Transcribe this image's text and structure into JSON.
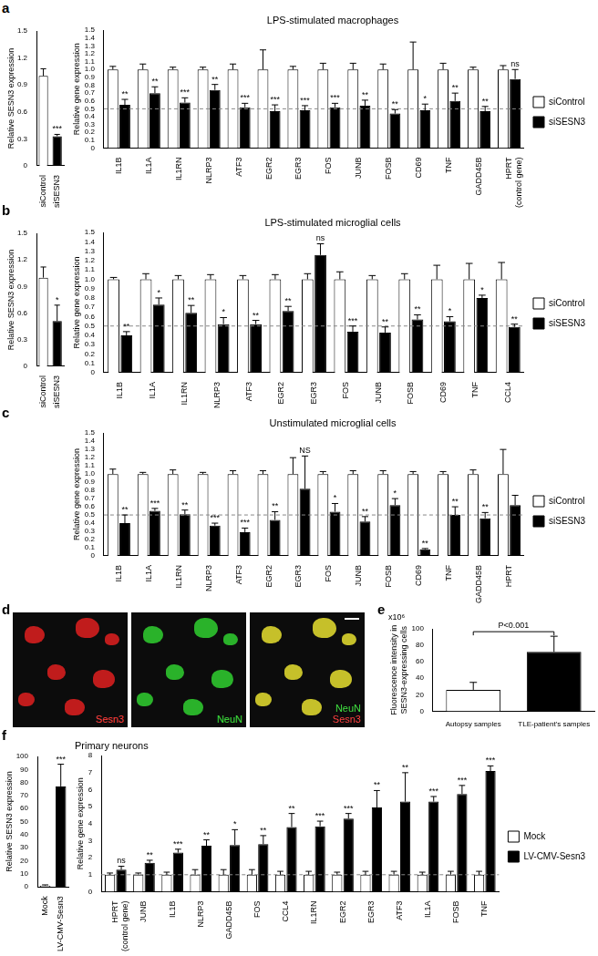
{
  "chart_data": [
    {
      "panel": "a",
      "type": "bar",
      "y_label": "Relative SESN3 expression",
      "categories": [
        "siControl",
        "siSESN3"
      ],
      "values": [
        1.0,
        0.33
      ],
      "errors": [
        0.08,
        0.02
      ],
      "significance": [
        null,
        "***"
      ],
      "colors": [
        "#ffffff",
        "#000000"
      ],
      "ylim": [
        0,
        1.5
      ],
      "yticks": [
        0,
        0.3,
        0.6,
        0.9,
        1.2,
        1.5
      ],
      "grid": false
    },
    {
      "type": "bar",
      "title": "LPS-stimulated macrophages",
      "y_label": "Relative gene expression",
      "categories": [
        "IL1B",
        "IL1A",
        "IL1RN",
        "NLRP3",
        "ATF3",
        "EGR2",
        "EGR3",
        "FOS",
        "JUNB",
        "FOSB",
        "CD69",
        "TNF",
        "GADD45B",
        [
          "HPRT",
          "(control gene)"
        ]
      ],
      "series": [
        {
          "name": "siControl",
          "color": "#ffffff",
          "values": [
            1,
            1,
            1,
            1,
            1,
            1,
            1,
            1,
            1,
            1,
            1,
            1,
            1,
            1
          ],
          "errors": [
            0.04,
            0.07,
            0.03,
            0.03,
            0.07,
            0.25,
            0.04,
            0.08,
            0.08,
            0.07,
            0.35,
            0.08,
            0.03,
            0.05
          ]
        },
        {
          "name": "siSESN3",
          "color": "#000000",
          "values": [
            0.55,
            0.7,
            0.58,
            0.74,
            0.52,
            0.47,
            0.48,
            0.52,
            0.54,
            0.44,
            0.48,
            0.6,
            0.47,
            0.88
          ],
          "errors": [
            0.07,
            0.08,
            0.06,
            0.07,
            0.05,
            0.08,
            0.06,
            0.05,
            0.07,
            0.05,
            0.08,
            0.1,
            0.06,
            0.12
          ],
          "significance": [
            "**",
            "**",
            "***",
            "**",
            "***",
            "***",
            "***",
            "***",
            "**",
            "**",
            "*",
            "**",
            "**",
            "ns"
          ]
        }
      ],
      "hline": 0.5,
      "ylim": [
        0,
        1.5
      ],
      "yticks": [
        0,
        0.1,
        0.2,
        0.3,
        0.4,
        0.5,
        0.6,
        0.7,
        0.8,
        0.9,
        {
          "value": 1,
          "label": "1.0"
        },
        1.1,
        1.2,
        1.3,
        1.4,
        1.5
      ],
      "legend": "right",
      "grid": false
    },
    {
      "panel": "b",
      "type": "bar",
      "y_label": "Relative SESN3 expression",
      "categories": [
        "siControl",
        "siSESN3"
      ],
      "values": [
        1.0,
        0.51
      ],
      "errors": [
        0.12,
        0.18
      ],
      "significance": [
        null,
        "*"
      ],
      "colors": [
        "#ffffff",
        "#000000"
      ],
      "ylim": [
        0,
        1.5
      ],
      "yticks": [
        0,
        0.3,
        0.6,
        0.9,
        1.2,
        1.5
      ],
      "grid": false
    },
    {
      "type": "bar",
      "title": "LPS-stimulated microglial cells",
      "y_label": "Relative gene expression",
      "categories": [
        "IL1B",
        "IL1A",
        "IL1RN",
        "NLRP3",
        "ATF3",
        "EGR2",
        "EGR3",
        "FOS",
        "JUNB",
        "FOSB",
        "CD69",
        "TNF",
        "CCL4"
      ],
      "series": [
        {
          "name": "siControl",
          "color": "#ffffff",
          "values": [
            1,
            1,
            1,
            1,
            1,
            1,
            1,
            1,
            1,
            1,
            1,
            1,
            1
          ],
          "errors": [
            0.02,
            0.06,
            0.04,
            0.05,
            0.04,
            0.05,
            0.06,
            0.08,
            0.04,
            0.06,
            0.15,
            0.17,
            0.18
          ]
        },
        {
          "name": "siSESN3",
          "color": "#000000",
          "values": [
            0.4,
            0.73,
            0.64,
            0.52,
            0.52,
            0.66,
            1.26,
            0.44,
            0.43,
            0.57,
            0.55,
            0.8,
            0.49
          ],
          "errors": [
            0.04,
            0.07,
            0.08,
            0.07,
            0.04,
            0.05,
            0.12,
            0.06,
            0.06,
            0.05,
            0.05,
            0.03,
            0.03
          ],
          "significance": [
            "**",
            "*",
            "**",
            "*",
            "**",
            "**",
            "ns",
            "***",
            "**",
            "**",
            "*",
            "*",
            "**"
          ]
        }
      ],
      "hline": 0.5,
      "ylim": [
        0,
        1.5
      ],
      "yticks": [
        0,
        0.1,
        0.2,
        0.3,
        0.4,
        0.5,
        0.6,
        0.7,
        0.8,
        0.9,
        {
          "value": 1,
          "label": "1.0"
        },
        1.1,
        1.2,
        1.3,
        1.4,
        1.5
      ],
      "legend": "right",
      "grid": false
    },
    {
      "panel": "c",
      "type": "bar",
      "title": "Unstimulated microglial cells",
      "y_label": "Relative gene expression",
      "categories": [
        "IL1B",
        "IL1A",
        "IL1RN",
        "NLRP3",
        "ATF3",
        "EGR2",
        "EGR3",
        "FOS",
        "JUNB",
        "FOSB",
        "CD69",
        "TNF",
        "GADD45B",
        "HPRT"
      ],
      "series": [
        {
          "name": "siControl",
          "color": "#ffffff",
          "values": [
            1,
            1,
            1,
            1,
            1,
            1,
            1,
            1,
            1,
            1,
            1,
            1,
            1,
            1
          ],
          "errors": [
            0.06,
            0.02,
            0.05,
            0.02,
            0.04,
            0.04,
            0.2,
            0.03,
            0.04,
            0.04,
            0.03,
            0.03,
            0.05,
            0.3
          ]
        },
        {
          "name": "siSESN3",
          "color": "#000000",
          "values": [
            0.4,
            0.55,
            0.51,
            0.37,
            0.29,
            0.44,
            0.82,
            0.54,
            0.42,
            0.62,
            0.08,
            0.5,
            0.46,
            0.62
          ],
          "errors": [
            0.1,
            0.03,
            0.05,
            0.03,
            0.05,
            0.1,
            0.4,
            0.1,
            0.06,
            0.08,
            0.01,
            0.1,
            0.07,
            0.12
          ],
          "significance": [
            "**",
            "***",
            "**",
            "***",
            "***",
            "**",
            "NS",
            "*",
            "**",
            "*",
            "**",
            "**",
            "**",
            null
          ]
        }
      ],
      "hline": 0.5,
      "ylim": [
        0,
        1.5
      ],
      "yticks": [
        0,
        0.1,
        0.2,
        0.3,
        0.4,
        0.5,
        0.6,
        0.7,
        0.8,
        0.9,
        {
          "value": 1,
          "label": "1.0"
        },
        1.1,
        1.2,
        1.3,
        1.4,
        1.5
      ],
      "legend": "right",
      "grid": false
    },
    {
      "panel": "e",
      "type": "bar",
      "y_label": [
        "Fluorescence intensity in",
        "SESN3-expressing cells"
      ],
      "y_multiplier": "x10⁶",
      "categories": [
        "Autopsy samples",
        "TLE-patient's samples"
      ],
      "values": [
        26,
        72
      ],
      "errors": [
        9,
        19
      ],
      "colors": [
        "#ffffff",
        "#000000"
      ],
      "annotation": "P<0.001",
      "ylim": [
        0,
        100
      ],
      "yticks": [
        0,
        20,
        40,
        60,
        80,
        100
      ],
      "grid": false
    },
    {
      "panel": "f",
      "type": "bar",
      "y_label": "Relative SESN3 expression",
      "categories": [
        "Mock",
        "LV-CMV-Sesn3"
      ],
      "values": [
        1,
        77
      ],
      "errors": [
        0.5,
        17
      ],
      "significance": [
        null,
        "***"
      ],
      "colors": [
        "#ffffff",
        "#000000"
      ],
      "ylim": [
        0,
        100
      ],
      "yticks": [
        0,
        10,
        20,
        30,
        40,
        50,
        60,
        70,
        80,
        90,
        100
      ],
      "grid": false
    },
    {
      "type": "bar",
      "title": "Primary neurons",
      "y_label": "Relative gene expression",
      "categories": [
        [
          "HPRT",
          "(control gene)"
        ],
        "JUNB",
        "IL1B",
        "NLRP3",
        "GADD45B",
        "FOS",
        "CCL4",
        "IL1RN",
        "EGR2",
        "EGR3",
        "ATF3",
        "IL1A",
        "FOSB",
        "TNF"
      ],
      "series": [
        {
          "name": "Mock",
          "color": "#ffffff",
          "values": [
            1,
            1,
            1,
            1,
            1,
            1,
            1,
            1,
            1,
            1,
            1,
            1,
            1,
            1
          ],
          "errors": [
            0.1,
            0.1,
            0.15,
            0.3,
            0.3,
            0.3,
            0.2,
            0.2,
            0.15,
            0.2,
            0.2,
            0.15,
            0.2,
            0.2
          ]
        },
        {
          "name": "LV-CMV-Sesn3",
          "color": "#000000",
          "values": [
            1.3,
            1.7,
            2.3,
            2.7,
            2.75,
            2.8,
            3.8,
            3.85,
            4.3,
            4.95,
            5.3,
            5.3,
            5.75,
            7.1
          ],
          "errors": [
            0.2,
            0.15,
            0.2,
            0.35,
            0.9,
            0.5,
            0.8,
            0.3,
            0.3,
            1.0,
            1.7,
            0.3,
            0.5,
            0.3
          ],
          "significance": [
            "ns",
            "**",
            "***",
            "**",
            "*",
            "**",
            "**",
            "***",
            "***",
            "**",
            "**",
            "***",
            "***",
            "***"
          ]
        }
      ],
      "hline": 1,
      "ylim": [
        0,
        8
      ],
      "yticks": [
        0,
        1,
        2,
        3,
        4,
        5,
        6,
        7,
        8
      ],
      "legend": "right",
      "grid": false
    }
  ],
  "image_panel": {
    "panel": "d",
    "images": [
      {
        "labels": [
          {
            "text": "Sesn3",
            "color": "#ff4040"
          }
        ]
      },
      {
        "labels": [
          {
            "text": "NeuN",
            "color": "#40e040"
          }
        ]
      },
      {
        "labels": [
          {
            "text": "NeuN",
            "color": "#40e040"
          },
          {
            "text": "Sesn3",
            "color": "#ff4040"
          }
        ]
      }
    ]
  }
}
